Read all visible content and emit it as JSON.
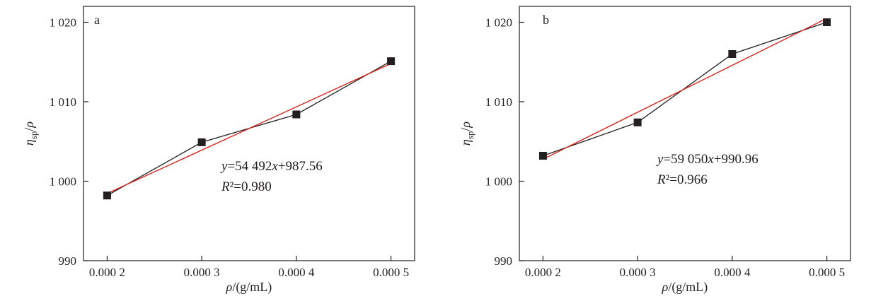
{
  "chart_data": [
    {
      "type": "scatter",
      "panel_label": "a",
      "xlabel": "ρ/(g/mL)",
      "ylabel": "η_sp/ρ",
      "xlim": [
        0.000175,
        0.000525
      ],
      "ylim": [
        990,
        1022
      ],
      "x_ticks": [
        0.0002,
        0.0003,
        0.0004,
        0.0005
      ],
      "x_tick_labels": [
        "0.000 2",
        "0.000 3",
        "0.000 4",
        "0.000 5"
      ],
      "y_ticks": [
        990,
        1000,
        1010,
        1020
      ],
      "y_tick_labels": [
        "990",
        "1 000",
        "1 010",
        "1 020"
      ],
      "series": [
        {
          "marker": "square",
          "color": "#231f20",
          "connected": true,
          "x": [
            0.0002,
            0.0003,
            0.0004,
            0.0005
          ],
          "y": [
            998.2,
            1004.9,
            1008.4,
            1015.1
          ]
        }
      ],
      "fit": {
        "slope": 54492,
        "intercept": 987.56,
        "color": "#d7261e"
      },
      "equation": "y=54 492x+987.56",
      "r_squared": "R²=0.980",
      "grid": false
    },
    {
      "type": "scatter",
      "panel_label": "b",
      "xlabel": "ρ/(g/mL)",
      "ylabel": "η_sp/ρ",
      "xlim": [
        0.000175,
        0.000525
      ],
      "ylim": [
        990,
        1022
      ],
      "x_ticks": [
        0.0002,
        0.0003,
        0.0004,
        0.0005
      ],
      "x_tick_labels": [
        "0.000 2",
        "0.000 3",
        "0.000 4",
        "0.000 5"
      ],
      "y_ticks": [
        990,
        1000,
        1010,
        1020
      ],
      "y_tick_labels": [
        "990",
        "1 000",
        "1 010",
        "1 020"
      ],
      "series": [
        {
          "marker": "square",
          "color": "#231f20",
          "connected": true,
          "x": [
            0.0002,
            0.0003,
            0.0004,
            0.0005
          ],
          "y": [
            1003.2,
            1007.4,
            1016.0,
            1020.0
          ]
        }
      ],
      "fit": {
        "slope": 59050,
        "intercept": 990.96,
        "color": "#d7261e"
      },
      "equation": "y=59 050x+990.96",
      "r_squared": "R²=0.966",
      "grid": false
    }
  ]
}
